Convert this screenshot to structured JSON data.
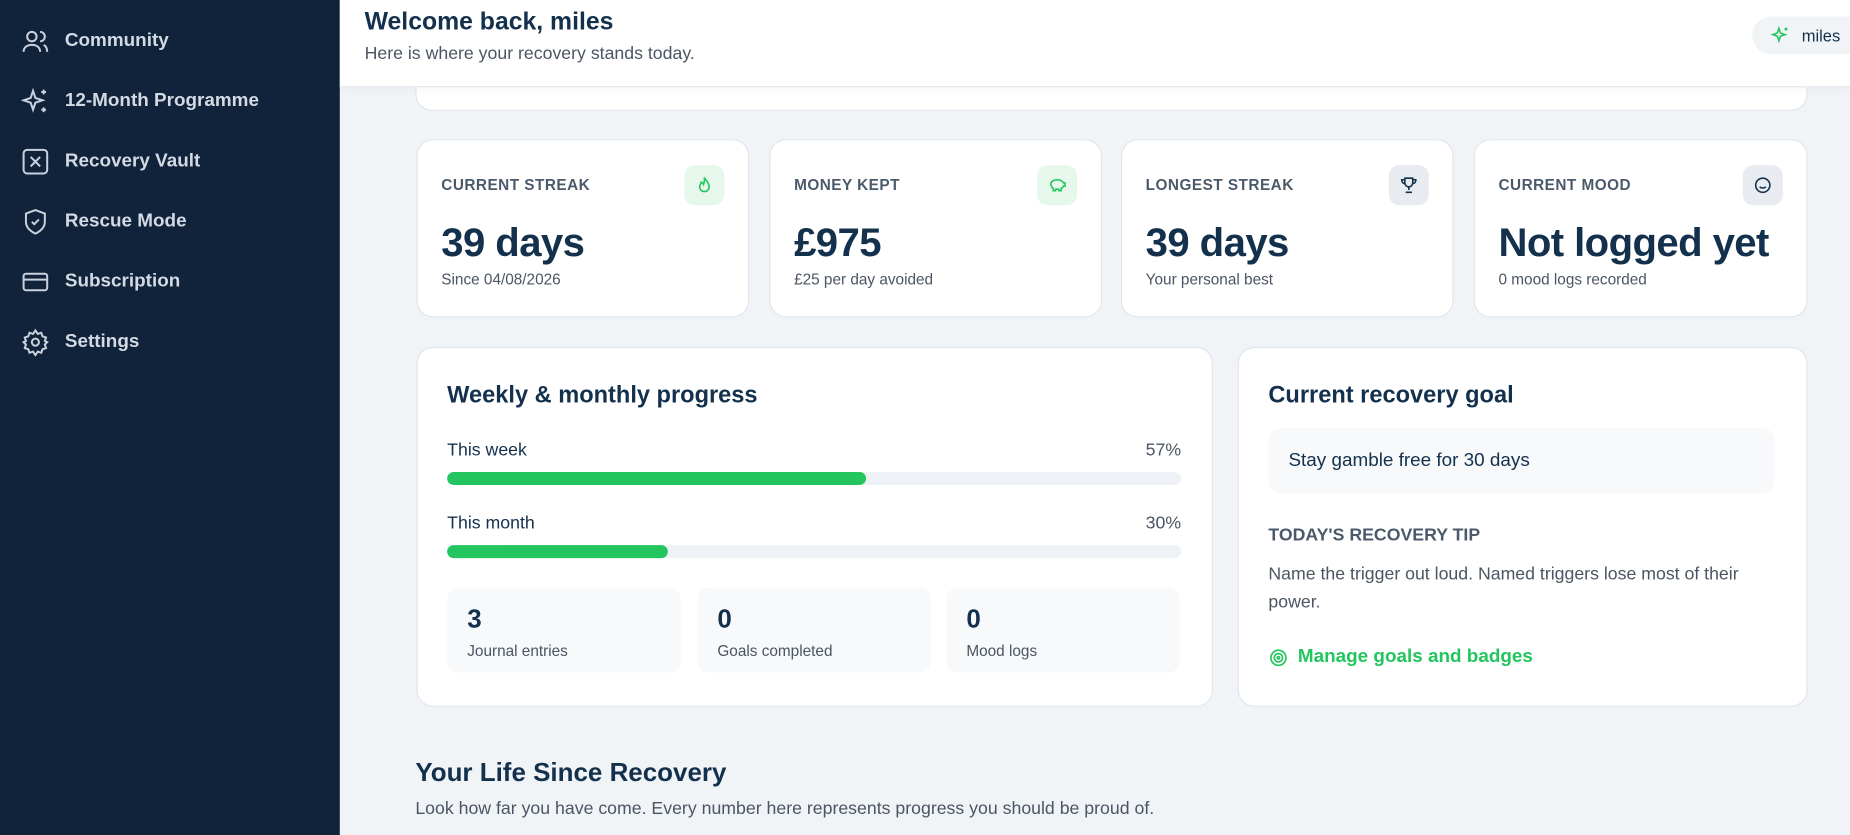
{
  "sidebar": {
    "items": [
      "Community",
      "12-Month Programme",
      "Recovery Vault",
      "Rescue Mode",
      "Subscription",
      "Settings"
    ]
  },
  "header": {
    "title": "Welcome back, miles",
    "subtitle": "Here is where your recovery stands today.",
    "user": "miles"
  },
  "stats": [
    {
      "label": "CURRENT STREAK",
      "value": "39 days",
      "sub": "Since 04/08/2026"
    },
    {
      "label": "MONEY KEPT",
      "value": "£975",
      "sub": "£25 per day avoided"
    },
    {
      "label": "LONGEST STREAK",
      "value": "39 days",
      "sub": "Your personal best"
    },
    {
      "label": "CURRENT MOOD",
      "value": "Not logged yet",
      "sub": "0 mood logs recorded"
    }
  ],
  "progress": {
    "title": "Weekly & monthly progress",
    "bars": [
      {
        "label": "This week",
        "value": 57,
        "value_label": "57%"
      },
      {
        "label": "This month",
        "value": 30,
        "value_label": "30%"
      }
    ],
    "counts": [
      {
        "value": 3,
        "label": "Journal entries"
      },
      {
        "value": 0,
        "label": "Goals completed"
      },
      {
        "value": 0,
        "label": "Mood logs"
      }
    ]
  },
  "goal": {
    "title": "Current recovery goal",
    "goal": "Stay gamble free for 30 days",
    "tip_title": "TODAY'S RECOVERY TIP",
    "tip": "Name the trigger out loud. Named triggers lose most of their power.",
    "link": "Manage goals and badges"
  },
  "section": {
    "title": "Your Life Since Recovery",
    "subtitle": "Look how far you have come. Every number here represents progress you should be proud of."
  }
}
